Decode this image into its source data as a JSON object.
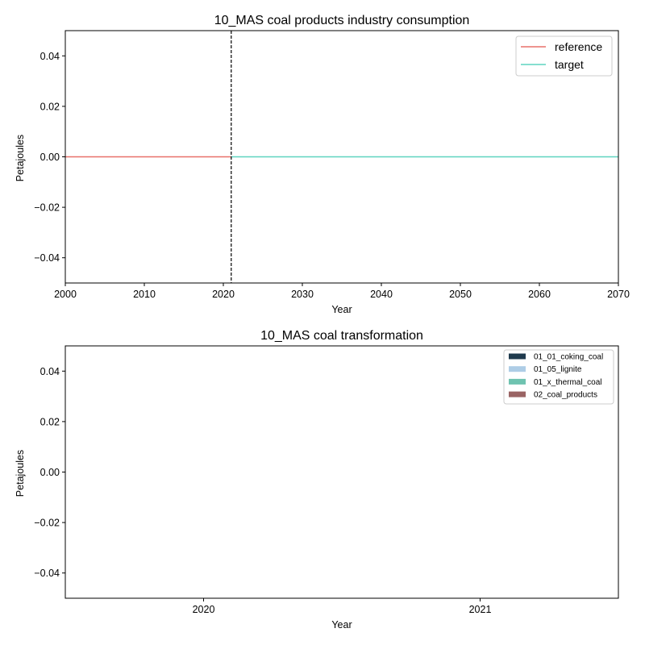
{
  "chart_data": [
    {
      "type": "line",
      "title": "10_MAS coal products industry consumption",
      "xlabel": "Year",
      "ylabel": "Petajoules",
      "xlim": [
        2000,
        2070
      ],
      "ylim": [
        -0.05,
        0.05
      ],
      "xticks": [
        2000,
        2010,
        2020,
        2030,
        2040,
        2050,
        2060,
        2070
      ],
      "xtick_labels": [
        "2000",
        "2010",
        "2020",
        "2030",
        "2040",
        "2050",
        "2060",
        "2070"
      ],
      "yticks": [
        0.04,
        0.02,
        0.0,
        -0.02,
        -0.04
      ],
      "ytick_labels": [
        "0.04",
        "0.02",
        "0.00",
        "−0.02",
        "−0.04"
      ],
      "vline": {
        "x": 2021,
        "style": "dashed",
        "color": "#000000"
      },
      "legend_position": "top-right",
      "series": [
        {
          "name": "reference",
          "color": "#e8706a",
          "x": [
            2000,
            2021
          ],
          "y": [
            0,
            0
          ]
        },
        {
          "name": "target",
          "color": "#5fd4c0",
          "x": [
            2021,
            2070
          ],
          "y": [
            0,
            0
          ]
        }
      ]
    },
    {
      "type": "bar",
      "title": "10_MAS coal transformation",
      "xlabel": "Year",
      "ylabel": "Petajoules",
      "categories": [
        "2020",
        "2021"
      ],
      "ylim": [
        -0.05,
        0.05
      ],
      "yticks": [
        0.04,
        0.02,
        0.0,
        -0.02,
        -0.04
      ],
      "ytick_labels": [
        "0.04",
        "0.02",
        "0.00",
        "−0.02",
        "−0.04"
      ],
      "legend_position": "top-right",
      "series": [
        {
          "name": "01_01_coking_coal",
          "color": "#1f3a4d",
          "values": [
            0,
            0
          ]
        },
        {
          "name": "01_05_lignite",
          "color": "#aecde6",
          "values": [
            0,
            0
          ]
        },
        {
          "name": "01_x_thermal_coal",
          "color": "#6fc3b0",
          "values": [
            0,
            0
          ]
        },
        {
          "name": "02_coal_products",
          "color": "#9a6464",
          "values": [
            0,
            0
          ]
        }
      ]
    }
  ]
}
